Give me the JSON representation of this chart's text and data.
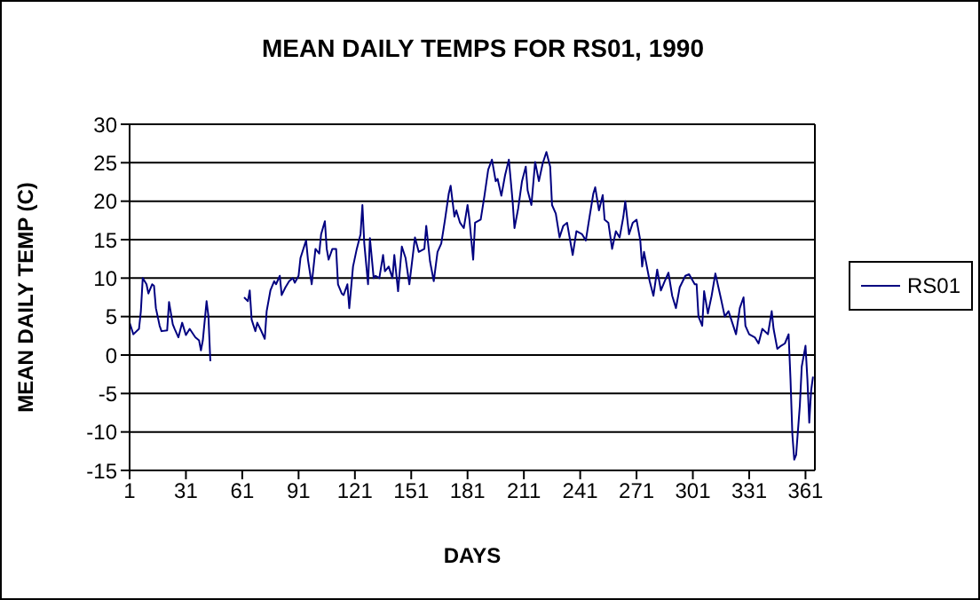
{
  "chart_data": {
    "type": "line",
    "title": "MEAN DAILY TEMPS FOR RS01, 1990",
    "xlabel": "DAYS",
    "ylabel": "MEAN DAILY TEMP (C)",
    "x": [
      1,
      3,
      6,
      7,
      8,
      10,
      11,
      13,
      14,
      15,
      17,
      18,
      21,
      22,
      24,
      25,
      27,
      29,
      31,
      33,
      36,
      38,
      39,
      40,
      42,
      43,
      44,
      50,
      62,
      64,
      65,
      66,
      68,
      69,
      71,
      73,
      74,
      76,
      78,
      79,
      81,
      82,
      84,
      86,
      88,
      89,
      91,
      92,
      95,
      96,
      98,
      100,
      102,
      103,
      105,
      106,
      107,
      109,
      111,
      112,
      114,
      115,
      117,
      118,
      120,
      122,
      124,
      125,
      126,
      128,
      129,
      131,
      132,
      134,
      136,
      137,
      139,
      141,
      142,
      144,
      146,
      148,
      150,
      153,
      155,
      158,
      159,
      161,
      163,
      165,
      167,
      169,
      171,
      172,
      174,
      175,
      177,
      179,
      181,
      182,
      184,
      185,
      188,
      190,
      192,
      194,
      196,
      197,
      199,
      201,
      203,
      205,
      206,
      208,
      210,
      212,
      213,
      215,
      217,
      219,
      221,
      223,
      225,
      226,
      228,
      230,
      232,
      234,
      237,
      239,
      242,
      244,
      246,
      248,
      249,
      251,
      253,
      254,
      256,
      258,
      260,
      262,
      264,
      265,
      267,
      269,
      271,
      273,
      274,
      275,
      278,
      280,
      282,
      284,
      286,
      288,
      290,
      292,
      294,
      297,
      299,
      302,
      303,
      304,
      306,
      307,
      309,
      311,
      313,
      315,
      316,
      318,
      320,
      322,
      324,
      326,
      328,
      329,
      331,
      334,
      336,
      338,
      341,
      343,
      344,
      346,
      348,
      350,
      352,
      353,
      354,
      355,
      356,
      358,
      359,
      361,
      362,
      363,
      364,
      365
    ],
    "series": [
      {
        "name": "RS01",
        "color": "#000080",
        "values": [
          4.2,
          2.7,
          3.4,
          5.7,
          10,
          9.2,
          8,
          9.2,
          9,
          6.1,
          3.8,
          3.1,
          3.2,
          6.9,
          4,
          3.4,
          2.3,
          4.2,
          2.6,
          3.4,
          2.3,
          1.9,
          0.6,
          1.9,
          7,
          5,
          -0.8,
          null,
          7.5,
          7,
          8.4,
          4.6,
          3.1,
          4.2,
          3.2,
          2.1,
          5.7,
          8.4,
          9.6,
          9.2,
          10.3,
          7.8,
          8.8,
          9.6,
          10,
          9.4,
          10.3,
          12.6,
          14.9,
          12.4,
          9.2,
          13.8,
          13.2,
          15.7,
          17.4,
          13.8,
          12.4,
          13.8,
          13.8,
          9.2,
          8,
          7.8,
          9.2,
          6.1,
          11.5,
          13.8,
          15.7,
          19.5,
          14.5,
          9.2,
          15.2,
          10,
          10.3,
          10,
          13,
          10.9,
          11.5,
          10,
          13,
          8.3,
          14.1,
          12.6,
          9.2,
          15.3,
          13.4,
          13.8,
          16.8,
          12.2,
          9.6,
          13.4,
          14.5,
          17.6,
          21,
          22,
          18,
          18.8,
          17.2,
          16.5,
          19.5,
          17.6,
          12.4,
          17.2,
          17.6,
          20.7,
          24.1,
          25.4,
          22.6,
          22.9,
          20.7,
          23.4,
          25.4,
          20,
          16.5,
          19.1,
          22.6,
          24.5,
          21.4,
          19.5,
          25.1,
          22.6,
          24.9,
          26.4,
          24.5,
          19.5,
          18.4,
          15.3,
          16.8,
          17.2,
          13,
          16.1,
          15.7,
          14.9,
          18,
          21,
          21.8,
          18.8,
          20.8,
          17.6,
          17.2,
          13.8,
          16.1,
          15.3,
          18,
          20,
          15.7,
          17.2,
          17.6,
          14.9,
          11.5,
          13.4,
          9.6,
          7.7,
          11.1,
          8.4,
          9.6,
          10.7,
          7.7,
          6.1,
          8.8,
          10.3,
          10.5,
          9.2,
          9.2,
          5,
          3.8,
          8.3,
          5.4,
          7.7,
          10.6,
          8.4,
          7.3,
          5,
          5.7,
          4.2,
          2.7,
          6.1,
          7.5,
          3.8,
          2.7,
          2.3,
          1.5,
          3.4,
          2.7,
          5.7,
          3.4,
          0.8,
          1.2,
          1.5,
          2.7,
          -3.1,
          -10.3,
          -13.6,
          -13,
          -6.5,
          -1.5,
          1.2,
          -3.1,
          -8.8,
          -4.6,
          -2.8
        ]
      }
    ],
    "xlim": [
      1,
      366
    ],
    "xticks": [
      1,
      31,
      61,
      91,
      121,
      151,
      181,
      211,
      241,
      271,
      301,
      331,
      361
    ],
    "ylim": [
      -15,
      30
    ],
    "yticks": [
      -15,
      -10,
      -5,
      0,
      5,
      10,
      15,
      20,
      25,
      30
    ],
    "grid": "y",
    "legend": "right",
    "line_style": "solid",
    "marker": "none"
  }
}
